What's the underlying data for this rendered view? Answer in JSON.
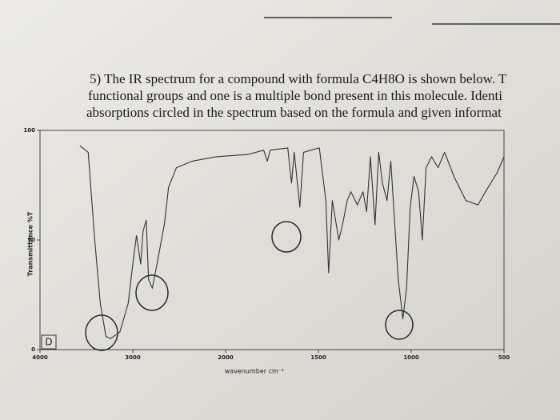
{
  "question": {
    "lines": [
      "5) The IR spectrum for a compound with formula C4H8O is shown below. T",
      "functional groups and one is a multiple bond present in this molecule. Identi",
      "absorptions circled in the spectrum based on the formula and given informat"
    ]
  },
  "chart_data": {
    "type": "line",
    "xlabel": "wavenumber cm⁻¹",
    "ylabel": "Transmittance %T",
    "annotation": "D",
    "x": [
      3570,
      3480,
      3410,
      3350,
      3290,
      3240,
      3140,
      3050,
      3000,
      2960,
      2915,
      2890,
      2855,
      2830,
      2790,
      2740,
      2660,
      2615,
      2530,
      2360,
      2100,
      1880,
      1795,
      1775,
      1760,
      1665,
      1645,
      1630,
      1600,
      1580,
      1540,
      1495,
      1460,
      1445,
      1425,
      1390,
      1370,
      1345,
      1325,
      1290,
      1260,
      1240,
      1220,
      1195,
      1175,
      1155,
      1130,
      1110,
      1070,
      1045,
      1025,
      1005,
      985,
      960,
      940,
      920,
      890,
      855,
      820,
      770,
      705,
      640,
      600,
      535,
      500
    ],
    "values": [
      93,
      90,
      50,
      21,
      6,
      5,
      8,
      21,
      39,
      52,
      39,
      54,
      59,
      32,
      28,
      39,
      57,
      74,
      83,
      86,
      88,
      89,
      91,
      86,
      91,
      92,
      76,
      90,
      65,
      90,
      91,
      92,
      68,
      35,
      68,
      50,
      57,
      68,
      72,
      66,
      72,
      63,
      88,
      57,
      90,
      76,
      68,
      86,
      32,
      14,
      28,
      65,
      79,
      72,
      50,
      83,
      88,
      83,
      90,
      79,
      68,
      66,
      72,
      81,
      88
    ],
    "color": "#333333",
    "xlim": [
      4000,
      500
    ],
    "xticks": [
      4000,
      3000,
      2000,
      1500,
      1000,
      500
    ],
    "ylim": [
      0,
      100
    ],
    "yticks": [
      0,
      50,
      100
    ]
  }
}
